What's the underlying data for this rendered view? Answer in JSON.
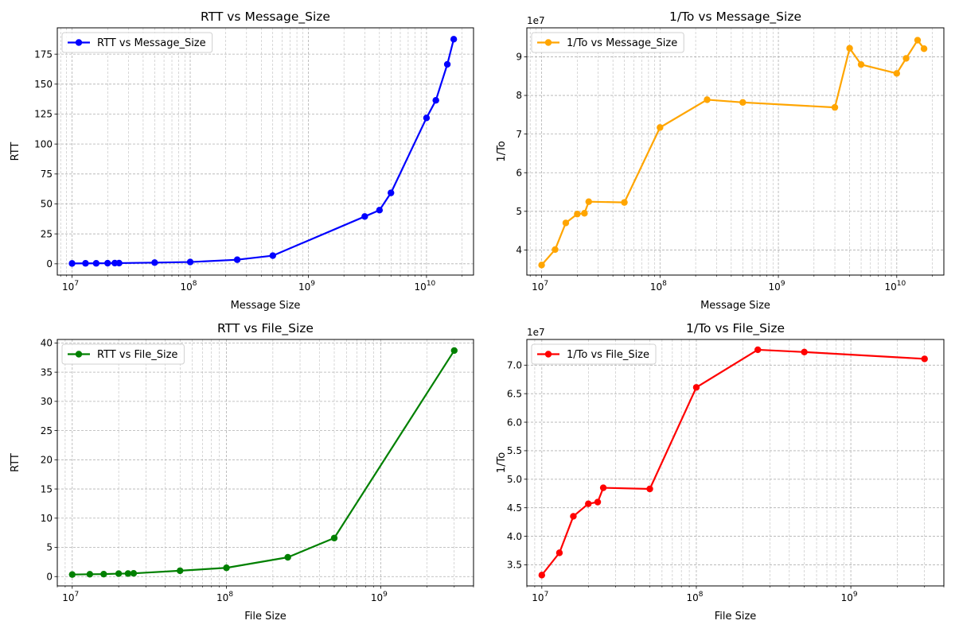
{
  "chart_data": [
    {
      "type": "line",
      "title": "RTT vs Message_Size",
      "xlabel": "Message Size",
      "ylabel": "RTT",
      "xscale": "log",
      "xlim": [
        7500000,
        25000000000
      ],
      "ylim": [
        -9.4,
        197
      ],
      "yticks": [
        0,
        25,
        50,
        75,
        100,
        125,
        150,
        175
      ],
      "ytick_labels": [
        "0",
        "25",
        "50",
        "75",
        "100",
        "125",
        "150",
        "175"
      ],
      "xticks": [
        10000000,
        100000000,
        1000000000,
        10000000000
      ],
      "xtick_labels": [
        [
          "10",
          "7"
        ],
        [
          "10",
          "8"
        ],
        [
          "10",
          "9"
        ],
        [
          "10",
          "10"
        ]
      ],
      "offset_text": "",
      "grid": true,
      "legend_position": "top-left",
      "series": [
        {
          "name": "RTT vs Message_Size",
          "color": "#0000ff",
          "x": [
            10000000,
            13000000,
            16000000,
            20000000,
            23000000,
            25000000,
            50000000,
            100000000,
            250000000,
            500000000,
            3000000000,
            4000000000,
            5000000000,
            10000000000,
            12000000000,
            15000000000,
            17000000000
          ],
          "y": [
            0.3,
            0.4,
            0.4,
            0.5,
            0.6,
            0.6,
            1.0,
            1.5,
            3.4,
            6.8,
            39.5,
            44.8,
            59.2,
            121.8,
            136.5,
            166.5,
            187.5
          ]
        }
      ]
    },
    {
      "type": "line",
      "title": "1/To vs Message_Size",
      "xlabel": "Message Size",
      "ylabel": "1/To",
      "xscale": "log",
      "xlim": [
        7500000,
        25000000000
      ],
      "ylim": [
        33500000,
        97500000
      ],
      "yticks": [
        40000000,
        50000000,
        60000000,
        70000000,
        80000000,
        90000000
      ],
      "ytick_labels": [
        "4",
        "5",
        "6",
        "7",
        "8",
        "9"
      ],
      "xticks": [
        10000000,
        100000000,
        1000000000,
        10000000000
      ],
      "xtick_labels": [
        [
          "10",
          "7"
        ],
        [
          "10",
          "8"
        ],
        [
          "10",
          "9"
        ],
        [
          "10",
          "10"
        ]
      ],
      "offset_text": "1e7",
      "grid": true,
      "legend_position": "top-left",
      "series": [
        {
          "name": "1/To vs Message_Size",
          "color": "#ffa500",
          "x": [
            10000000,
            13000000,
            16000000,
            20000000,
            23000000,
            25000000,
            50000000,
            100000000,
            250000000,
            500000000,
            3000000000,
            4000000000,
            5000000000,
            10000000000,
            12000000000,
            15000000000,
            17000000000
          ],
          "y": [
            36100000,
            40100000,
            47000000,
            49300000,
            49500000,
            52500000,
            52300000,
            71700000,
            78900000,
            78200000,
            76900000,
            92200000,
            88000000,
            85700000,
            89600000,
            94300000,
            92100000
          ]
        }
      ]
    },
    {
      "type": "line",
      "title": "RTT vs File_Size",
      "xlabel": "File Size",
      "ylabel": "RTT",
      "xscale": "log",
      "xlim": [
        8000000,
        4000000000
      ],
      "ylim": [
        -1.6,
        40.6
      ],
      "yticks": [
        0,
        5,
        10,
        15,
        20,
        25,
        30,
        35,
        40
      ],
      "ytick_labels": [
        "0",
        "5",
        "10",
        "15",
        "20",
        "25",
        "30",
        "35",
        "40"
      ],
      "xticks": [
        10000000,
        100000000,
        1000000000
      ],
      "xtick_labels": [
        [
          "10",
          "7"
        ],
        [
          "10",
          "8"
        ],
        [
          "10",
          "9"
        ]
      ],
      "offset_text": "",
      "grid": true,
      "legend_position": "top-left",
      "series": [
        {
          "name": "RTT vs File_Size",
          "color": "#008000",
          "x": [
            10000000,
            13000000,
            16000000,
            20000000,
            23000000,
            25000000,
            50000000,
            100000000,
            250000000,
            500000000,
            3000000000
          ],
          "y": [
            0.35,
            0.4,
            0.42,
            0.5,
            0.52,
            0.55,
            1.0,
            1.5,
            3.3,
            6.6,
            38.7
          ]
        }
      ]
    },
    {
      "type": "line",
      "title": "1/To vs File_Size",
      "xlabel": "File Size",
      "ylabel": "1/To",
      "xscale": "log",
      "xlim": [
        8000000,
        4000000000
      ],
      "ylim": [
        31300000,
        74500000
      ],
      "yticks": [
        35000000,
        40000000,
        45000000,
        50000000,
        55000000,
        60000000,
        65000000,
        70000000
      ],
      "ytick_labels": [
        "3.5",
        "4.0",
        "4.5",
        "5.0",
        "5.5",
        "6.0",
        "6.5",
        "7.0"
      ],
      "xticks": [
        10000000,
        100000000,
        1000000000
      ],
      "xtick_labels": [
        [
          "10",
          "7"
        ],
        [
          "10",
          "8"
        ],
        [
          "10",
          "9"
        ]
      ],
      "offset_text": "1e7",
      "grid": true,
      "legend_position": "top-left",
      "series": [
        {
          "name": "1/To vs File_Size",
          "color": "#ff0000",
          "x": [
            10000000,
            13000000,
            16000000,
            20000000,
            23000000,
            25000000,
            50000000,
            100000000,
            250000000,
            500000000,
            3000000000
          ],
          "y": [
            33200000,
            37100000,
            43500000,
            45700000,
            46000000,
            48500000,
            48300000,
            66100000,
            72700000,
            72300000,
            71100000
          ]
        }
      ]
    }
  ]
}
